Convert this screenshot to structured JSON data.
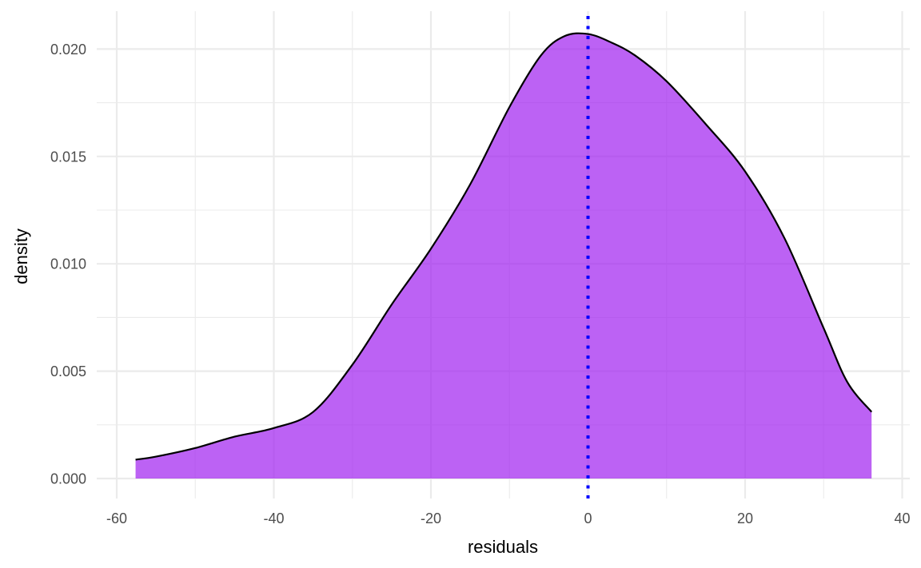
{
  "chart_data": {
    "type": "area",
    "xlabel": "residuals",
    "ylabel": "density",
    "xlim": [
      -60,
      40
    ],
    "ylim": [
      0,
      0.02
    ],
    "x_ticks": [
      -60,
      -40,
      -20,
      0,
      20,
      40
    ],
    "x_tick_labels": [
      "-60",
      "-40",
      "-20",
      "0",
      "20",
      "40"
    ],
    "y_ticks": [
      0,
      0.005,
      0.01,
      0.015,
      0.02
    ],
    "y_tick_labels": [
      "0.000",
      "0.005",
      "0.010",
      "0.015",
      "0.020"
    ],
    "grid": true,
    "series": [
      {
        "x": [
          -57.6,
          -55,
          -50,
          -45,
          -40,
          -35,
          -30,
          -25,
          -20,
          -15,
          -10,
          -6,
          -3,
          0,
          3,
          6,
          10,
          15,
          20,
          25,
          30,
          33,
          36.1
        ],
        "y": [
          0.00088,
          0.00102,
          0.00142,
          0.00195,
          0.00235,
          0.0031,
          0.0053,
          0.0081,
          0.0107,
          0.0137,
          0.0173,
          0.0197,
          0.0206,
          0.0207,
          0.0203,
          0.0197,
          0.0185,
          0.0165,
          0.0143,
          0.0112,
          0.007,
          0.0045,
          0.0031
        ],
        "fill_color": "#a020f0",
        "fill_opacity": 0.7,
        "line_color": "#000000"
      }
    ],
    "vline": {
      "x": 0,
      "color": "#0000ff",
      "style": "dotted"
    }
  }
}
